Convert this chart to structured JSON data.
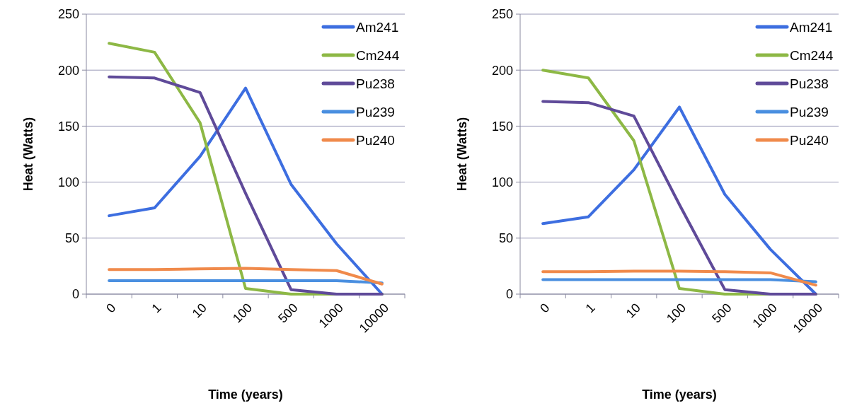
{
  "chart_data": [
    {
      "type": "line",
      "xlabel": "Time (years)",
      "ylabel": "Heat (Watts)",
      "categories": [
        "0",
        "1",
        "10",
        "100",
        "500",
        "1000",
        "10000"
      ],
      "ylim": [
        0,
        250
      ],
      "yticks": [
        0,
        50,
        100,
        150,
        200,
        250
      ],
      "grid": "y",
      "legend": "top right",
      "marker": "none",
      "series": [
        {
          "name": "Am241",
          "color": "#3d6ee0",
          "values": [
            70,
            77,
            123,
            184,
            98,
            45,
            0
          ]
        },
        {
          "name": "Cm244",
          "color": "#8db845",
          "values": [
            224,
            216,
            153,
            5,
            0,
            0,
            0
          ]
        },
        {
          "name": "Pu238",
          "color": "#5f4a99",
          "values": [
            194,
            193,
            180,
            90,
            4,
            0,
            0
          ]
        },
        {
          "name": "Pu239",
          "color": "#4a8fe0",
          "values": [
            12,
            12,
            12,
            12,
            12,
            12,
            10
          ]
        },
        {
          "name": "Pu240",
          "color": "#f08a4b",
          "values": [
            22,
            22,
            22.5,
            23,
            22,
            21,
            9
          ]
        }
      ]
    },
    {
      "type": "line",
      "xlabel": "Time (years)",
      "ylabel": "Heat (Watts)",
      "categories": [
        "0",
        "1",
        "10",
        "100",
        "500",
        "1000",
        "10000"
      ],
      "ylim": [
        0,
        250
      ],
      "yticks": [
        0,
        50,
        100,
        150,
        200,
        250
      ],
      "grid": "y",
      "legend": "top right",
      "marker": "none",
      "series": [
        {
          "name": "Am241",
          "color": "#3d6ee0",
          "values": [
            63,
            69,
            111,
            167,
            89,
            40,
            0
          ]
        },
        {
          "name": "Cm244",
          "color": "#8db845",
          "values": [
            200,
            193,
            137,
            5,
            0,
            0,
            0
          ]
        },
        {
          "name": "Pu238",
          "color": "#5f4a99",
          "values": [
            172,
            171,
            159,
            80,
            4,
            0,
            0
          ]
        },
        {
          "name": "Pu239",
          "color": "#4a8fe0",
          "values": [
            13,
            13,
            13,
            13,
            13,
            13,
            11
          ]
        },
        {
          "name": "Pu240",
          "color": "#f08a4b",
          "values": [
            20,
            20,
            20.5,
            20.5,
            20,
            19,
            8
          ]
        }
      ]
    }
  ]
}
